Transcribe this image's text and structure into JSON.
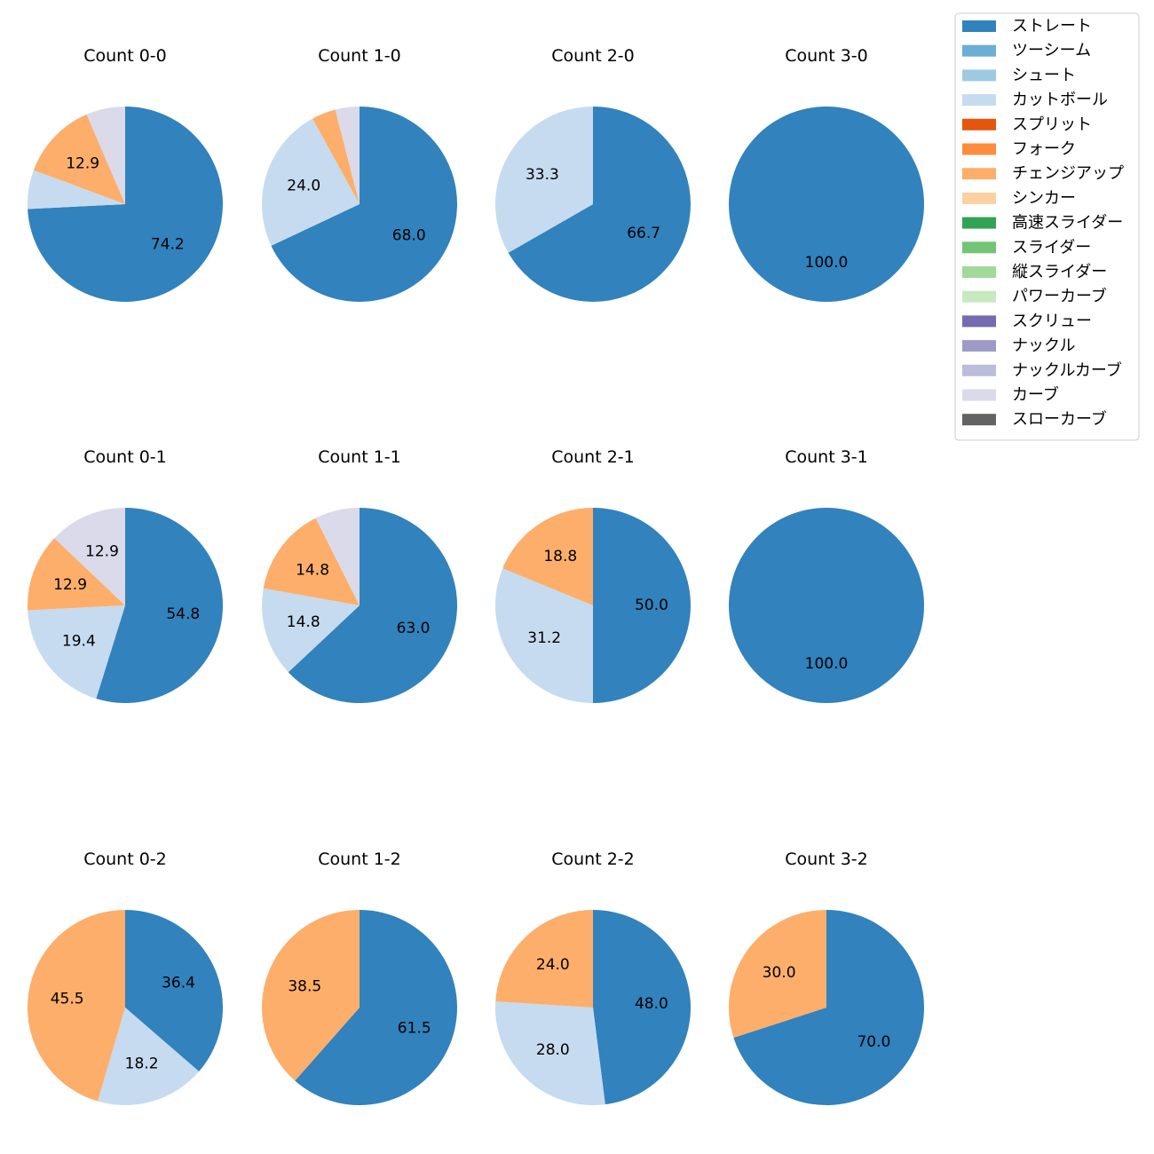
{
  "colors": {
    "ストレート": "#3182bd",
    "ツーシーム": "#6baed6",
    "シュート": "#9ecae1",
    "カットボール": "#c6dbef",
    "スプリット": "#e6550d",
    "フォーク": "#fd8d3c",
    "チェンジアップ": "#fdae6b",
    "シンカー": "#fdd0a2",
    "高速スライダー": "#31a354",
    "スライダー": "#74c476",
    "縦スライダー": "#a1d99b",
    "パワーカーブ": "#c7e9c0",
    "スクリュー": "#756bb1",
    "ナックル": "#9e9ac8",
    "ナックルカーブ": "#bcbddc",
    "カーブ": "#dadaeb",
    "スローカーブ": "#636363"
  },
  "legend": [
    "ストレート",
    "ツーシーム",
    "シュート",
    "カットボール",
    "スプリット",
    "フォーク",
    "チェンジアップ",
    "シンカー",
    "高速スライダー",
    "スライダー",
    "縦スライダー",
    "パワーカーブ",
    "スクリュー",
    "ナックル",
    "ナックルカーブ",
    "カーブ",
    "スローカーブ"
  ],
  "chart_data": [
    {
      "type": "pie",
      "title": "Count 0-0",
      "slices": [
        {
          "name": "ストレート",
          "value": 74.2,
          "label": "74.2"
        },
        {
          "name": "カットボール",
          "value": 6.45,
          "label": ""
        },
        {
          "name": "チェンジアップ",
          "value": 12.9,
          "label": "12.9"
        },
        {
          "name": "カーブ",
          "value": 6.45,
          "label": ""
        }
      ]
    },
    {
      "type": "pie",
      "title": "Count 1-0",
      "slices": [
        {
          "name": "ストレート",
          "value": 68.0,
          "label": "68.0"
        },
        {
          "name": "カットボール",
          "value": 24.0,
          "label": "24.0"
        },
        {
          "name": "チェンジアップ",
          "value": 4.0,
          "label": ""
        },
        {
          "name": "カーブ",
          "value": 4.0,
          "label": ""
        }
      ]
    },
    {
      "type": "pie",
      "title": "Count 2-0",
      "slices": [
        {
          "name": "ストレート",
          "value": 66.7,
          "label": "66.7"
        },
        {
          "name": "カットボール",
          "value": 33.3,
          "label": "33.3"
        }
      ]
    },
    {
      "type": "pie",
      "title": "Count 3-0",
      "slices": [
        {
          "name": "ストレート",
          "value": 100.0,
          "label": "100.0"
        }
      ]
    },
    {
      "type": "pie",
      "title": "Count 0-1",
      "slices": [
        {
          "name": "ストレート",
          "value": 54.8,
          "label": "54.8"
        },
        {
          "name": "カットボール",
          "value": 19.4,
          "label": "19.4"
        },
        {
          "name": "チェンジアップ",
          "value": 12.9,
          "label": "12.9"
        },
        {
          "name": "カーブ",
          "value": 12.9,
          "label": "12.9"
        }
      ]
    },
    {
      "type": "pie",
      "title": "Count 1-1",
      "slices": [
        {
          "name": "ストレート",
          "value": 63.0,
          "label": "63.0"
        },
        {
          "name": "カットボール",
          "value": 14.8,
          "label": "14.8"
        },
        {
          "name": "チェンジアップ",
          "value": 14.8,
          "label": "14.8"
        },
        {
          "name": "カーブ",
          "value": 7.4,
          "label": ""
        }
      ]
    },
    {
      "type": "pie",
      "title": "Count 2-1",
      "slices": [
        {
          "name": "ストレート",
          "value": 50.0,
          "label": "50.0"
        },
        {
          "name": "カットボール",
          "value": 31.2,
          "label": "31.2"
        },
        {
          "name": "チェンジアップ",
          "value": 18.8,
          "label": "18.8"
        }
      ]
    },
    {
      "type": "pie",
      "title": "Count 3-1",
      "slices": [
        {
          "name": "ストレート",
          "value": 100.0,
          "label": "100.0"
        }
      ]
    },
    {
      "type": "pie",
      "title": "Count 0-2",
      "slices": [
        {
          "name": "ストレート",
          "value": 36.4,
          "label": "36.4"
        },
        {
          "name": "カットボール",
          "value": 18.2,
          "label": "18.2"
        },
        {
          "name": "チェンジアップ",
          "value": 45.5,
          "label": "45.5"
        }
      ]
    },
    {
      "type": "pie",
      "title": "Count 1-2",
      "slices": [
        {
          "name": "ストレート",
          "value": 61.5,
          "label": "61.5"
        },
        {
          "name": "チェンジアップ",
          "value": 38.5,
          "label": "38.5"
        }
      ]
    },
    {
      "type": "pie",
      "title": "Count 2-2",
      "slices": [
        {
          "name": "ストレート",
          "value": 48.0,
          "label": "48.0"
        },
        {
          "name": "カットボール",
          "value": 28.0,
          "label": "28.0"
        },
        {
          "name": "チェンジアップ",
          "value": 24.0,
          "label": "24.0"
        }
      ]
    },
    {
      "type": "pie",
      "title": "Count 3-2",
      "slices": [
        {
          "name": "ストレート",
          "value": 70.0,
          "label": "70.0"
        },
        {
          "name": "チェンジアップ",
          "value": 30.0,
          "label": "30.0"
        }
      ]
    }
  ]
}
